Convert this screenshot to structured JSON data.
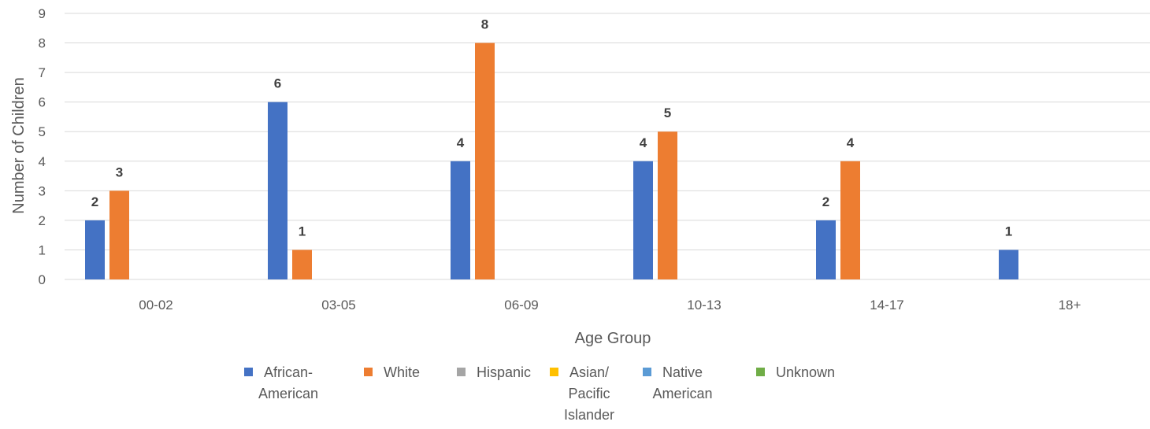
{
  "chart_data": {
    "type": "bar",
    "categories": [
      "00-02",
      "03-05",
      "06-09",
      "10-13",
      "14-17",
      "18+"
    ],
    "series": [
      {
        "name": "African-American",
        "color": "#4472c4",
        "values": [
          2,
          6,
          4,
          4,
          2,
          1
        ]
      },
      {
        "name": "White",
        "color": "#ed7d31",
        "values": [
          3,
          1,
          8,
          5,
          4,
          0
        ]
      },
      {
        "name": "Hispanic",
        "color": "#a5a5a5",
        "values": [
          0,
          0,
          0,
          0,
          0,
          0
        ]
      },
      {
        "name": "Asian/ Pacific Islander",
        "color": "#ffc000",
        "values": [
          0,
          0,
          0,
          0,
          0,
          0
        ]
      },
      {
        "name": "Native American",
        "color": "#5b9bd5",
        "values": [
          0,
          0,
          0,
          0,
          0,
          0
        ]
      },
      {
        "name": "Unknown",
        "color": "#70ad47",
        "values": [
          0,
          0,
          0,
          0,
          0,
          0
        ]
      }
    ],
    "legend_lines": [
      [
        "African-",
        "American"
      ],
      [
        "White"
      ],
      [
        "Hispanic"
      ],
      [
        "Asian/",
        "Pacific",
        "Islander"
      ],
      [
        "Native",
        "American"
      ],
      [
        "Unknown"
      ]
    ],
    "xlabel": "Age Group",
    "ylabel": "Number of Children",
    "ylim": [
      0,
      9
    ],
    "yticks": [
      "0",
      "1",
      "2",
      "3",
      "4",
      "5",
      "6",
      "7",
      "8",
      "9"
    ],
    "grid": true,
    "legend_position": "bottom",
    "data_labels": "non-zero values shown above bars"
  }
}
